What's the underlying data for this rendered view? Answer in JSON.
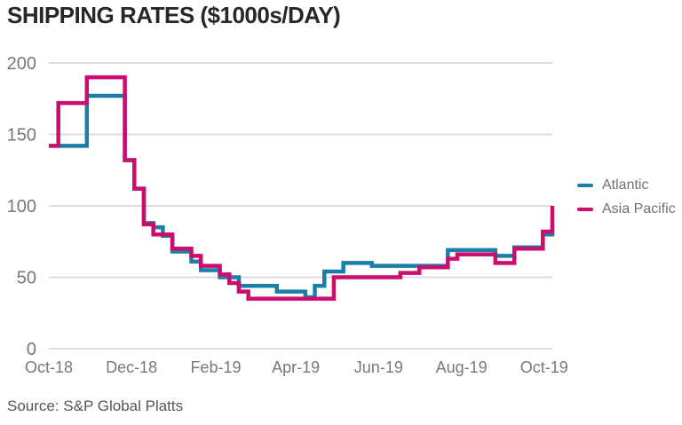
{
  "title": "SHIPPING RATES ($1000s/DAY)",
  "source": "Source: S&P Global Platts",
  "legend": [
    {
      "label": "Atlantic",
      "color": "#1a7fa8"
    },
    {
      "label": "Asia Pacific",
      "color": "#cc0d6e"
    }
  ],
  "chart_data": {
    "type": "line",
    "step": true,
    "title": "SHIPPING RATES ($1000s/DAY)",
    "xlabel": "",
    "ylabel": "",
    "x_unit": "weeks since Oct-2018",
    "ylim": [
      0,
      200
    ],
    "y_ticks": [
      0,
      50,
      100,
      150,
      200
    ],
    "x_ticks": [
      {
        "label": "Oct-18",
        "week": 0
      },
      {
        "label": "Dec-18",
        "week": 8.71
      },
      {
        "label": "Feb-19",
        "week": 17.57
      },
      {
        "label": "Apr-19",
        "week": 26.0
      },
      {
        "label": "Jun-19",
        "week": 34.71
      },
      {
        "label": "Aug-19",
        "week": 43.43
      },
      {
        "label": "Oct-19",
        "week": 52.14
      }
    ],
    "grid": {
      "show": true,
      "color": "#dcdcdc"
    },
    "legend_position": "right",
    "series": [
      {
        "name": "Atlantic",
        "color": "#1a7fa8",
        "values": [
          142,
          142,
          142,
          142,
          177,
          177,
          177,
          177,
          132,
          112,
          88,
          85,
          79,
          68,
          68,
          61,
          55,
          55,
          50,
          50,
          44,
          44,
          44,
          44,
          40,
          40,
          40,
          36,
          44,
          54,
          54,
          60,
          60,
          60,
          58,
          58,
          58,
          58,
          58,
          58,
          58,
          58,
          69,
          69,
          69,
          69,
          69,
          65,
          65,
          71,
          71,
          71,
          80,
          88
        ]
      },
      {
        "name": "Asia Pacific",
        "color": "#cc0d6e",
        "values": [
          142,
          172,
          172,
          172,
          190,
          190,
          190,
          190,
          132,
          112,
          87,
          80,
          80,
          70,
          70,
          65,
          58,
          58,
          52,
          46,
          40,
          35,
          35,
          35,
          35,
          35,
          35,
          35,
          35,
          35,
          50,
          50,
          50,
          50,
          50,
          50,
          50,
          53,
          53,
          57,
          57,
          57,
          63,
          66,
          66,
          66,
          66,
          60,
          60,
          70,
          70,
          70,
          82,
          100
        ]
      }
    ]
  }
}
